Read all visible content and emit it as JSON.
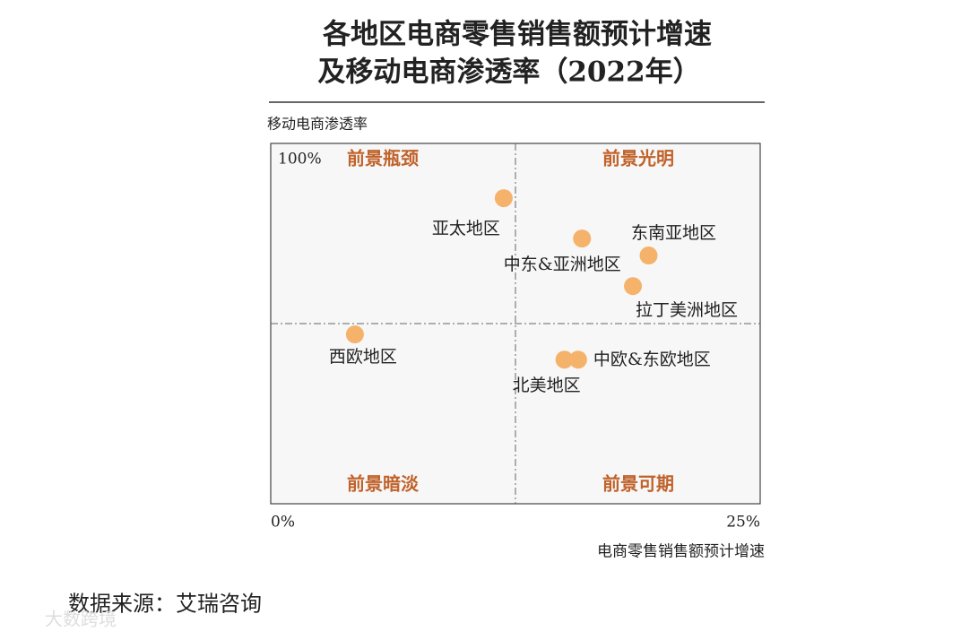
{
  "chart_data": {
    "type": "scatter",
    "title": "各地区电商零售销售额预计增速",
    "subtitle": "及移动电商渗透率（2022年）",
    "ylabel": "移动电商渗透率",
    "xlabel": "电商零售销售额预计增速",
    "xlim": [
      0,
      25
    ],
    "ylim": [
      0,
      100
    ],
    "xticks": [
      {
        "value": 0,
        "label": "0%"
      },
      {
        "value": 25,
        "label": "25%"
      }
    ],
    "yticks": [
      {
        "value": 100,
        "label": "100%"
      }
    ],
    "reference_lines": {
      "x": 12.5,
      "y": 50
    },
    "quadrants": [
      "前景瓶颈",
      "前景光明",
      "前景暗淡",
      "前景可期"
    ],
    "color": "#f5b26b",
    "points": [
      {
        "name": "亚太地区",
        "x": 11.9,
        "y": 84.8
      },
      {
        "name": "中东&亚洲地区",
        "x": 15.9,
        "y": 73.6
      },
      {
        "name": "东南亚地区",
        "x": 19.3,
        "y": 68.9
      },
      {
        "name": "拉丁美洲地区",
        "x": 18.5,
        "y": 60.4
      },
      {
        "name": "西欧地区",
        "x": 4.3,
        "y": 47.0
      },
      {
        "name": "北美地区",
        "x": 15.0,
        "y": 40.0
      },
      {
        "name": "中欧&东欧地区",
        "x": 15.7,
        "y": 40.0
      }
    ]
  },
  "source": "数据来源：艾瑞咨询",
  "watermark": "大数跨境"
}
